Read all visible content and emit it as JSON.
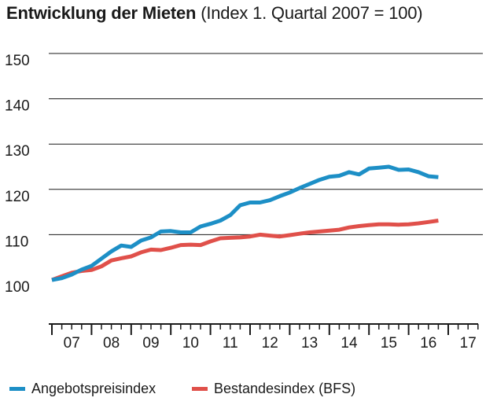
{
  "title": {
    "main": "Entwicklung der Mieten",
    "sub": "(Index 1. Quartal 2007 = 100)"
  },
  "colors": {
    "series_0": "#1d8fc6",
    "series_1": "#e0504a",
    "grid": "#1a1a1a",
    "axis": "#1a1a1a",
    "text": "#1a1a1a"
  },
  "chart_data": {
    "type": "line",
    "title": "Entwicklung der Mieten",
    "subtitle": "(Index 1. Quartal 2007 = 100)",
    "xlabel": "",
    "ylabel": "",
    "x_tick_labels": [
      "07",
      "08",
      "09",
      "10",
      "11",
      "12",
      "13",
      "14",
      "15",
      "16",
      "17"
    ],
    "y_ticks": [
      100,
      110,
      120,
      130,
      140,
      150
    ],
    "ylim": [
      94,
      150
    ],
    "xlim": [
      2007.0,
      2018.0
    ],
    "grid": true,
    "legend_position": "bottom",
    "series": [
      {
        "name": "Angebotspreisindex",
        "color": "#1d8fc6",
        "x": [
          2007.0,
          2007.25,
          2007.5,
          2007.75,
          2008.0,
          2008.25,
          2008.5,
          2008.75,
          2009.0,
          2009.25,
          2009.5,
          2009.75,
          2010.0,
          2010.25,
          2010.5,
          2010.75,
          2011.0,
          2011.25,
          2011.5,
          2011.75,
          2012.0,
          2012.25,
          2012.5,
          2012.75,
          2013.0,
          2013.25,
          2013.5,
          2013.75,
          2014.0,
          2014.25,
          2014.5,
          2014.75,
          2015.0,
          2015.25,
          2015.5,
          2015.75,
          2016.0,
          2016.25,
          2016.5,
          2016.75
        ],
        "y": [
          100,
          100.4,
          101.2,
          102.3,
          103.1,
          104.7,
          106.3,
          107.6,
          107.3,
          108.7,
          109.4,
          110.7,
          110.8,
          110.5,
          110.5,
          111.8,
          112.4,
          113.1,
          114.3,
          116.5,
          117.1,
          117.1,
          117.6,
          118.5,
          119.3,
          120.3,
          121.2,
          122.1,
          122.8,
          123.0,
          123.8,
          123.3,
          124.6,
          124.8,
          125.0,
          124.3,
          124.4,
          123.8,
          122.9,
          122.7
        ]
      },
      {
        "name": "Bestandesindex (BFS)",
        "color": "#e0504a",
        "x": [
          2007.0,
          2007.25,
          2007.5,
          2007.75,
          2008.0,
          2008.25,
          2008.5,
          2008.75,
          2009.0,
          2009.25,
          2009.5,
          2009.75,
          2010.0,
          2010.25,
          2010.5,
          2010.75,
          2011.0,
          2011.25,
          2011.5,
          2011.75,
          2012.0,
          2012.25,
          2012.5,
          2012.75,
          2013.0,
          2013.25,
          2013.5,
          2013.75,
          2014.0,
          2014.25,
          2014.5,
          2014.75,
          2015.0,
          2015.25,
          2015.5,
          2015.75,
          2016.0,
          2016.25,
          2016.5,
          2016.75
        ],
        "y": [
          100,
          100.8,
          101.6,
          102.0,
          102.2,
          103.0,
          104.3,
          104.8,
          105.2,
          106.1,
          106.7,
          106.6,
          107.1,
          107.7,
          107.8,
          107.7,
          108.5,
          109.2,
          109.3,
          109.4,
          109.6,
          110.0,
          109.8,
          109.6,
          109.9,
          110.2,
          110.5,
          110.7,
          110.9,
          111.1,
          111.6,
          111.9,
          112.1,
          112.3,
          112.3,
          112.2,
          112.3,
          112.5,
          112.8,
          113.1
        ]
      }
    ]
  }
}
